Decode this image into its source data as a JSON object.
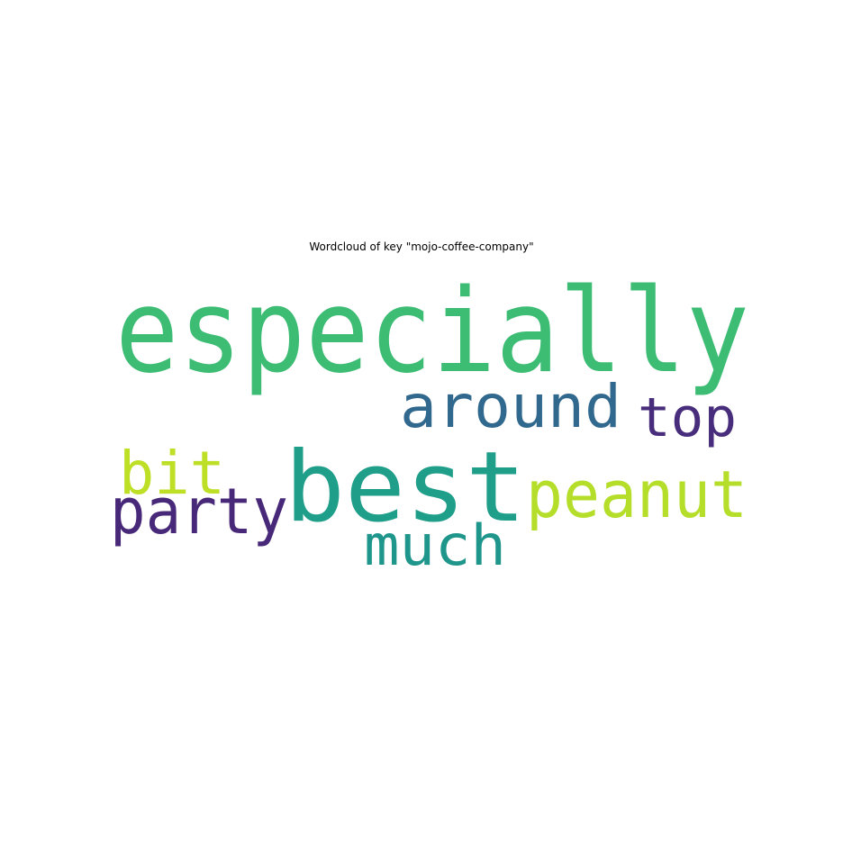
{
  "chart_data": {
    "type": "wordcloud",
    "title": "Wordcloud of key \"mojo-coffee-company\"",
    "words": [
      {
        "text": "especially",
        "weight": 1.0,
        "color": "#3dbc74",
        "rotate": 0
      },
      {
        "text": "best",
        "weight": 0.9,
        "color": "#1f9e89",
        "rotate": 0
      },
      {
        "text": "around",
        "weight": 0.5,
        "color": "#31688e",
        "rotate": 0
      },
      {
        "text": "peanut",
        "weight": 0.55,
        "color": "#b5de2b",
        "rotate": 0
      },
      {
        "text": "party",
        "weight": 0.52,
        "color": "#482878",
        "rotate": 0
      },
      {
        "text": "much",
        "weight": 0.5,
        "color": "#1f968b",
        "rotate": 0
      },
      {
        "text": "bit",
        "weight": 0.5,
        "color": "#bddf26",
        "rotate": 0
      },
      {
        "text": "top",
        "weight": 0.45,
        "color": "#472d7b",
        "rotate": 0
      }
    ]
  }
}
